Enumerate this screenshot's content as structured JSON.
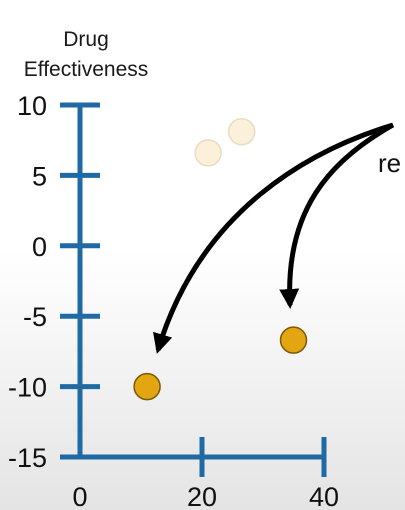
{
  "chart_data": {
    "type": "scatter",
    "title": "",
    "xlabel": "",
    "ylabel_lines": [
      "Drug",
      "Effectiveness"
    ],
    "xlim": [
      0,
      40
    ],
    "ylim": [
      -15,
      10
    ],
    "x_ticks": [
      0,
      20,
      40
    ],
    "y_ticks": [
      10,
      5,
      0,
      -5,
      -10,
      -15
    ],
    "grid": false,
    "series": [
      {
        "points": [
          {
            "x": 21,
            "y": 6.6
          },
          {
            "x": 26.5,
            "y": 8.1
          }
        ],
        "color": "#fbf0d9",
        "stroke": "#e9dcc0"
      },
      {
        "points": [
          {
            "x": 11,
            "y": -10.0
          },
          {
            "x": 35,
            "y": -6.7
          }
        ],
        "color": "#e3a511",
        "stroke": "#7a5a08"
      }
    ],
    "axis_color": "#1f6aa5",
    "annotation_text": "re"
  }
}
